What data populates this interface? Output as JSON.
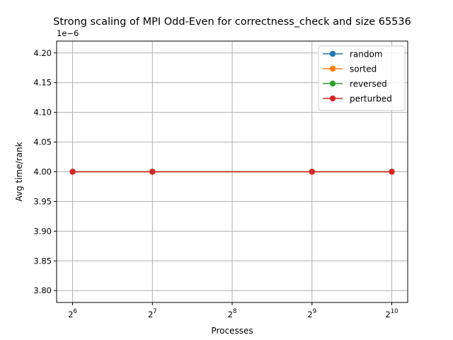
{
  "chart_data": {
    "type": "line",
    "title": "Strong scaling of MPI Odd-Even for correctness_check and size 65536",
    "xlabel": "Processes",
    "ylabel": "Avg time/rank",
    "y_offset_label": "1e−6",
    "x_scale": "log2",
    "x": [
      64,
      128,
      512,
      1024
    ],
    "xlim": [
      55.7,
      1176.0
    ],
    "xticks": [
      {
        "value": 64,
        "base": "2",
        "exp": "6"
      },
      {
        "value": 128,
        "base": "2",
        "exp": "7"
      },
      {
        "value": 256,
        "base": "2",
        "exp": "8"
      },
      {
        "value": 512,
        "base": "2",
        "exp": "9"
      },
      {
        "value": 1024,
        "base": "2",
        "exp": "10"
      }
    ],
    "ylim": [
      3.78,
      4.22
    ],
    "yticks": [
      {
        "value": 3.8,
        "label": "3.80"
      },
      {
        "value": 3.85,
        "label": "3.85"
      },
      {
        "value": 3.9,
        "label": "3.90"
      },
      {
        "value": 3.95,
        "label": "3.95"
      },
      {
        "value": 4.0,
        "label": "4.00"
      },
      {
        "value": 4.05,
        "label": "4.05"
      },
      {
        "value": 4.1,
        "label": "4.10"
      },
      {
        "value": 4.15,
        "label": "4.15"
      },
      {
        "value": 4.2,
        "label": "4.20"
      }
    ],
    "grid": true,
    "legend_position": "top-right",
    "series": [
      {
        "name": "random",
        "color": "#1f77b4",
        "values": [
          4.0,
          4.0,
          4.0,
          4.0
        ]
      },
      {
        "name": "sorted",
        "color": "#ff7f0e",
        "values": [
          4.0,
          4.0,
          4.0,
          4.0
        ]
      },
      {
        "name": "reversed",
        "color": "#2ca02c",
        "values": [
          4.0,
          4.0,
          4.0,
          4.0
        ]
      },
      {
        "name": "perturbed",
        "color": "#d62728",
        "values": [
          4.0,
          4.0,
          4.0,
          4.0
        ]
      }
    ]
  }
}
